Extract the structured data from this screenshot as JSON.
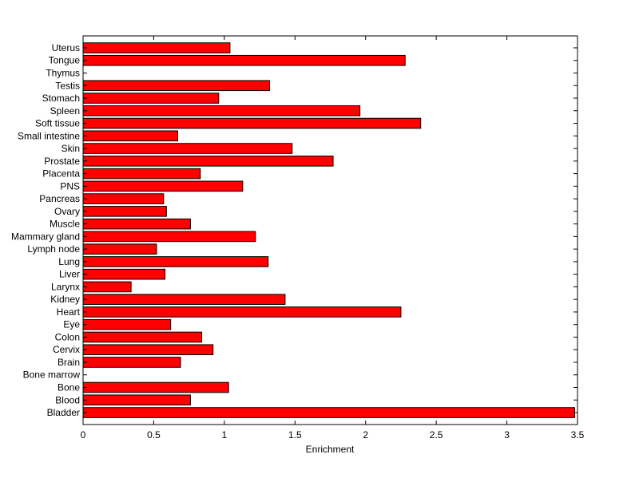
{
  "chart_data": {
    "type": "bar",
    "orientation": "horizontal",
    "categories": [
      "Uterus",
      "Tongue",
      "Thymus",
      "Testis",
      "Stomach",
      "Spleen",
      "Soft tissue",
      "Small intestine",
      "Skin",
      "Prostate",
      "Placenta",
      "PNS",
      "Pancreas",
      "Ovary",
      "Muscle",
      "Mammary gland",
      "Lymph node",
      "Lung",
      "Liver",
      "Larynx",
      "Kidney",
      "Heart",
      "Eye",
      "Colon",
      "Cervix",
      "Brain",
      "Bone marrow",
      "Bone",
      "Blood",
      "Bladder"
    ],
    "values": [
      1.04,
      2.28,
      0.0,
      1.32,
      0.96,
      1.96,
      2.39,
      0.67,
      1.48,
      1.77,
      0.83,
      1.13,
      0.57,
      0.59,
      0.76,
      1.22,
      0.52,
      1.31,
      0.58,
      0.34,
      1.43,
      2.25,
      0.62,
      0.84,
      0.92,
      0.69,
      0.0,
      1.03,
      0.76,
      3.48
    ],
    "xlabel": "Enrichment",
    "ylabel": "",
    "title": "",
    "xlim": [
      0,
      3.5
    ],
    "xticks": [
      "0",
      "0.5",
      "1",
      "1.5",
      "2",
      "2.5",
      "3",
      "3.5"
    ],
    "grid": false,
    "bar_color": "#ff0000",
    "edge_color": "#000000"
  }
}
